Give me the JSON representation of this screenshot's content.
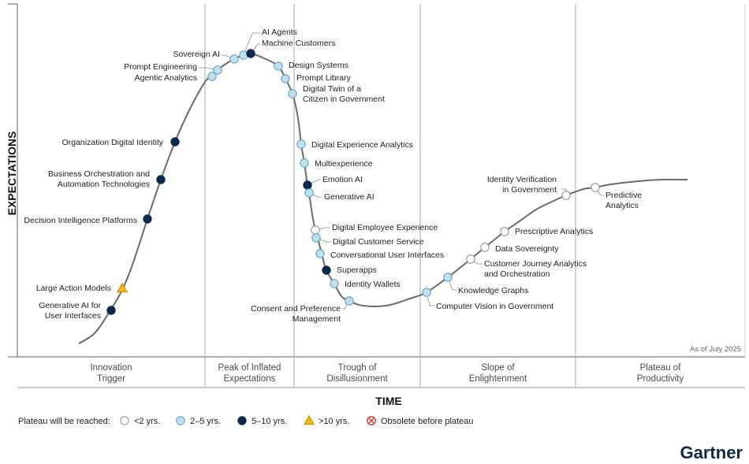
{
  "chart_data": {
    "type": "scatter",
    "x_axis_title": "TIME",
    "y_axis_title": "EXPECTATIONS",
    "as_of": "As of July 2025",
    "phases": [
      {
        "lines": [
          "Innovation",
          "Trigger"
        ]
      },
      {
        "lines": [
          "Peak of Inflated",
          "Expectations"
        ]
      },
      {
        "lines": [
          "Trough of",
          "Disillusionment"
        ]
      },
      {
        "lines": [
          "Slope of",
          "Enlightenment"
        ]
      },
      {
        "lines": [
          "Plateau of",
          "Productivity"
        ]
      }
    ],
    "legend_title": "Plateau will be reached:",
    "categories": [
      {
        "key": "lt2",
        "label": "<2 yrs.",
        "shape": "circle",
        "fill": "#ffffff",
        "stroke": "#8a8a8a"
      },
      {
        "key": "2to5",
        "label": "2–5 yrs.",
        "shape": "circle",
        "fill": "#bfe0f0",
        "stroke": "#5d9ab8"
      },
      {
        "key": "5to10",
        "label": "5–10 yrs.",
        "shape": "circle",
        "fill": "#0c2a4e",
        "stroke": "#0c2a4e"
      },
      {
        "key": "gt10",
        "label": ">10 yrs.",
        "shape": "triangle",
        "fill": "#f5b819",
        "stroke": "#c48d00"
      },
      {
        "key": "obsolete",
        "label": "Obsolete before plateau",
        "shape": "cross",
        "fill": "#ffffff",
        "stroke": "#d0312d"
      }
    ],
    "items": [
      {
        "lines": [
          "Generative AI for",
          "User Interfaces"
        ],
        "cat": "5to10"
      },
      {
        "lines": [
          "Large Action Models"
        ],
        "cat": "gt10"
      },
      {
        "lines": [
          "Decision Intelligence Platforms"
        ],
        "cat": "5to10"
      },
      {
        "lines": [
          "Business Orchestration and",
          "Automation Technologies"
        ],
        "cat": "5to10"
      },
      {
        "lines": [
          "Organization Digital Identity"
        ],
        "cat": "5to10"
      },
      {
        "lines": [
          "Agentic Analytics"
        ],
        "cat": "2to5"
      },
      {
        "lines": [
          "Prompt Engineering"
        ],
        "cat": "2to5"
      },
      {
        "lines": [
          "Sovereign AI"
        ],
        "cat": "2to5"
      },
      {
        "lines": [
          "AI Agents"
        ],
        "cat": "2to5"
      },
      {
        "lines": [
          "Machine Customers"
        ],
        "cat": "5to10"
      },
      {
        "lines": [
          "Design Systems"
        ],
        "cat": "2to5"
      },
      {
        "lines": [
          "Prompt Library"
        ],
        "cat": "2to5"
      },
      {
        "lines": [
          "Digital Twin of a",
          "Citizen in Government"
        ],
        "cat": "2to5"
      },
      {
        "lines": [
          "Digital Experience Analytics"
        ],
        "cat": "2to5"
      },
      {
        "lines": [
          "Multiexperience"
        ],
        "cat": "2to5"
      },
      {
        "lines": [
          "Emotion AI"
        ],
        "cat": "5to10"
      },
      {
        "lines": [
          "Generative AI"
        ],
        "cat": "2to5"
      },
      {
        "lines": [
          "Digital Employee Experience"
        ],
        "cat": "lt2"
      },
      {
        "lines": [
          "Digital Customer Service"
        ],
        "cat": "2to5"
      },
      {
        "lines": [
          "Conversational User Interfaces"
        ],
        "cat": "2to5"
      },
      {
        "lines": [
          "Superapps"
        ],
        "cat": "5to10"
      },
      {
        "lines": [
          "Identity Wallets"
        ],
        "cat": "2to5"
      },
      {
        "lines": [
          "Consent and Preference",
          "Management"
        ],
        "cat": "2to5"
      },
      {
        "lines": [
          "Computer Vision in Government"
        ],
        "cat": "2to5"
      },
      {
        "lines": [
          "Knowledge Graphs"
        ],
        "cat": "2to5"
      },
      {
        "lines": [
          "Customer Journey Analytics",
          "and Orchestration"
        ],
        "cat": "lt2"
      },
      {
        "lines": [
          "Data Sovereignty"
        ],
        "cat": "lt2"
      },
      {
        "lines": [
          "Prescriptive Analytics"
        ],
        "cat": "lt2"
      },
      {
        "lines": [
          "Identity Verification",
          "in Government"
        ],
        "cat": "lt2"
      },
      {
        "lines": [
          "Predictive",
          "Analytics"
        ],
        "cat": "lt2"
      }
    ]
  },
  "brand": "Gartner"
}
